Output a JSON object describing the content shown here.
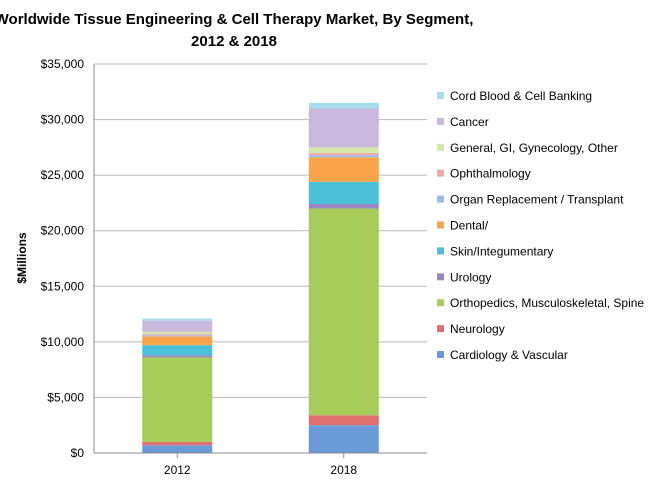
{
  "chart_data": {
    "type": "bar",
    "stacked": true,
    "title_lines": [
      "Worldwide Tissue Engineering & Cell Therapy Market, By Segment,",
      "2012 & 2018"
    ],
    "ylabel": "$Millions",
    "xlabel": "",
    "categories": [
      "2012",
      "2018"
    ],
    "ylim": [
      0,
      35000
    ],
    "yticks": [
      0,
      5000,
      10000,
      15000,
      20000,
      25000,
      30000,
      35000
    ],
    "ytick_labels": [
      "$0",
      "$5,000",
      "$10,000",
      "$15,000",
      "$20,000",
      "$25,000",
      "$30,000",
      "$35,000"
    ],
    "grid": "horizontal",
    "legend_position": "right",
    "series": [
      {
        "name": "Cardiology & Vascular",
        "color": "#6a9ad8",
        "values": [
          700,
          2500
        ]
      },
      {
        "name": "Neurology",
        "color": "#e07070",
        "values": [
          300,
          900
        ]
      },
      {
        "name": "Orthopedics, Musculoskeletal, Spine",
        "color": "#a8cc5a",
        "values": [
          7600,
          18600
        ]
      },
      {
        "name": "Urology",
        "color": "#9a86c0",
        "values": [
          200,
          400
        ]
      },
      {
        "name": "Skin/Integumentary",
        "color": "#4cc0d8",
        "values": [
          900,
          2000
        ]
      },
      {
        "name": "Dental/",
        "color": "#f7a44a",
        "values": [
          800,
          2200
        ]
      },
      {
        "name": "Organ Replacement / Transplant",
        "color": "#9cbce8",
        "values": [
          100,
          200
        ]
      },
      {
        "name": "Ophthalmology",
        "color": "#eeaaaa",
        "values": [
          100,
          200
        ]
      },
      {
        "name": "General, GI, Gynecology, Other",
        "color": "#d4e8a8",
        "values": [
          200,
          500
        ]
      },
      {
        "name": "Cancer",
        "color": "#c8b8dc",
        "values": [
          1000,
          3500
        ]
      },
      {
        "name": "Cord Blood & Cell Banking",
        "color": "#a8dcec",
        "values": [
          200,
          500
        ]
      }
    ]
  }
}
